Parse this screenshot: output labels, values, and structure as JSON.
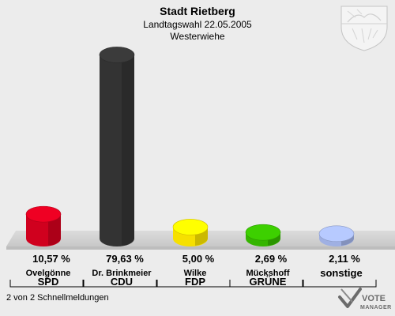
{
  "chart_data": {
    "type": "bar",
    "title": "Stadt Rietberg",
    "subtitle": "Landtagswahl 22.05.2005",
    "location": "Westerwiehe",
    "ylim": [
      0,
      100
    ],
    "series": [
      {
        "candidate": "Ovelgönne",
        "party": "SPD",
        "value": 10.57,
        "value_label": "10,57 %",
        "color": "#d0001e"
      },
      {
        "candidate": "Dr. Brinkmeier",
        "party": "CDU",
        "value": 79.63,
        "value_label": "79,63 %",
        "color": "#333333"
      },
      {
        "candidate": "Wilke",
        "party": "FDP",
        "value": 5.0,
        "value_label": "5,00 %",
        "color": "#f6e000"
      },
      {
        "candidate": "Mückshoff",
        "party": "GRÜNE",
        "value": 2.69,
        "value_label": "2,69 %",
        "color": "#35b500"
      },
      {
        "candidate": "",
        "party": "sonstige",
        "value": 2.11,
        "value_label": "2,11 %",
        "color": "#9fb0e3"
      }
    ]
  },
  "footer": {
    "status": "2 von 2 Schnellmeldungen"
  },
  "brand": {
    "line1": "VOTE",
    "line2": "MANAGER",
    "logo_icon": "check-mark-icon",
    "crest_icon": "nrw-coat-of-arms-icon"
  },
  "colors": {
    "background": "#ececec",
    "floor_top": "#d4d4d4",
    "floor_front": "#c3c3c3"
  }
}
